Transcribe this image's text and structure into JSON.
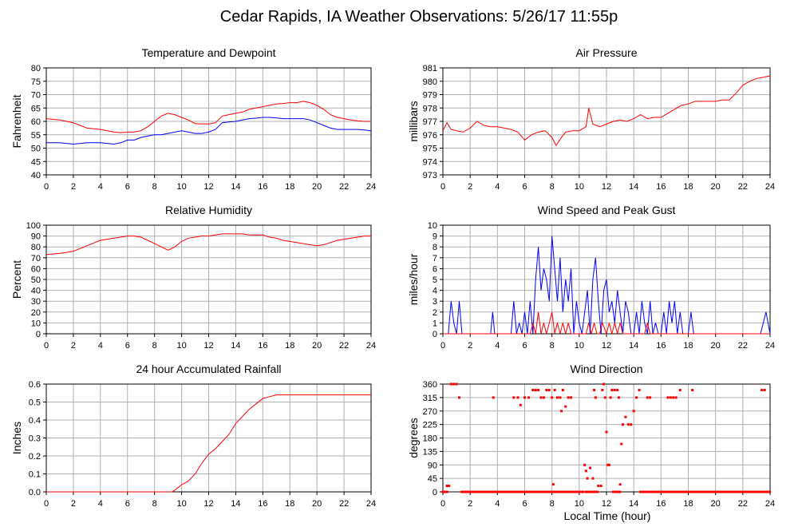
{
  "page": {
    "title": "Cedar Rapids, IA Weather Observations: 5/26/17 11:55p",
    "xlabel": "Local Time (hour)"
  },
  "colors": {
    "red": "#ff0000",
    "blue": "#0000ff",
    "grid": "#b0b0b0"
  },
  "chart_data": [
    {
      "id": "temp",
      "type": "line",
      "title": "Temperature and Dewpoint",
      "ylabel": "Fahrenheit",
      "xlim": [
        0,
        24
      ],
      "ylim": [
        40,
        80
      ],
      "xticks": [
        0,
        2,
        4,
        6,
        8,
        10,
        12,
        14,
        16,
        18,
        20,
        22,
        24
      ],
      "yticks": [
        40,
        45,
        50,
        55,
        60,
        65,
        70,
        75,
        80
      ],
      "series": [
        {
          "color": "#ff0000",
          "x": [
            0,
            1,
            2,
            3,
            4,
            5,
            5.5,
            6,
            6.5,
            7,
            7.5,
            8,
            8.5,
            9,
            9.5,
            10,
            10.5,
            11,
            11.5,
            12,
            12.5,
            13,
            13.5,
            14,
            14.5,
            15,
            15.5,
            16,
            16.5,
            17,
            17.5,
            18,
            18.5,
            19,
            19.5,
            20,
            20.5,
            21,
            21.5,
            22,
            22.5,
            23,
            23.5,
            24
          ],
          "y": [
            61,
            60.5,
            59.5,
            57.5,
            57,
            56,
            55.8,
            56,
            56,
            56.5,
            58,
            60,
            62,
            63,
            62.5,
            61.5,
            60.5,
            59.2,
            59,
            59,
            59.5,
            62,
            62.5,
            63,
            63.5,
            64.5,
            65,
            65.5,
            66,
            66.5,
            66.7,
            67,
            67,
            67.5,
            67,
            66,
            64.5,
            62.5,
            61.5,
            61,
            60.5,
            60.2,
            60,
            60
          ]
        },
        {
          "color": "#0000ff",
          "x": [
            0,
            1,
            2,
            3,
            4,
            5,
            5.5,
            6,
            6.5,
            7,
            7.5,
            8,
            8.5,
            9,
            9.5,
            10,
            10.5,
            11,
            11.5,
            12,
            12.5,
            13,
            13.5,
            14,
            14.5,
            15,
            15.5,
            16,
            16.5,
            17,
            17.5,
            18,
            18.5,
            19,
            19.5,
            20,
            20.5,
            21,
            21.5,
            22,
            22.5,
            23,
            23.5,
            24
          ],
          "y": [
            52,
            52,
            51.5,
            52,
            52,
            51.5,
            52,
            53,
            53,
            54,
            54.5,
            55,
            55,
            55.5,
            56,
            56.5,
            56,
            55.5,
            55.5,
            56,
            57,
            59.5,
            59.8,
            60,
            60.5,
            61,
            61.2,
            61.5,
            61.5,
            61.3,
            61,
            61,
            61,
            61,
            60.5,
            59.5,
            58.5,
            57.5,
            57,
            57,
            57,
            57,
            56.8,
            56.5
          ]
        }
      ]
    },
    {
      "id": "pressure",
      "type": "line",
      "title": "Air Pressure",
      "ylabel": "millibars",
      "xlim": [
        0,
        24
      ],
      "ylim": [
        973,
        981
      ],
      "xticks": [
        0,
        2,
        4,
        6,
        8,
        10,
        12,
        14,
        16,
        18,
        20,
        22,
        24
      ],
      "yticks": [
        973,
        974,
        975,
        976,
        977,
        978,
        979,
        980,
        981
      ],
      "series": [
        {
          "color": "#ff0000",
          "x": [
            0,
            0.3,
            0.6,
            1,
            1.5,
            2,
            2.5,
            3,
            3.5,
            4,
            4.5,
            5,
            5.5,
            6,
            6.5,
            7,
            7.5,
            8,
            8.3,
            8.7,
            9,
            9.5,
            10,
            10.5,
            10.7,
            11,
            11.5,
            12,
            12.5,
            13,
            13.5,
            14,
            14.5,
            15,
            15.5,
            16,
            16.5,
            17,
            17.5,
            18,
            18.5,
            19,
            19.5,
            20,
            20.5,
            21,
            21.5,
            22,
            22.5,
            23,
            23.5,
            24
          ],
          "y": [
            976.3,
            976.9,
            976.4,
            976.3,
            976.2,
            976.5,
            977,
            976.7,
            976.6,
            976.6,
            976.5,
            976.4,
            976.2,
            975.6,
            976,
            976.2,
            976.3,
            975.8,
            975.2,
            975.8,
            976.2,
            976.3,
            976.3,
            976.6,
            978,
            976.8,
            976.6,
            976.8,
            977,
            977.1,
            977,
            977.2,
            977.5,
            977.2,
            977.3,
            977.3,
            977.6,
            977.9,
            978.2,
            978.3,
            978.5,
            978.5,
            978.5,
            978.5,
            978.6,
            978.6,
            979.1,
            979.7,
            980,
            980.2,
            980.3,
            980.4
          ]
        }
      ]
    },
    {
      "id": "humidity",
      "type": "line",
      "title": "Relative Humidity",
      "ylabel": "Percent",
      "xlim": [
        0,
        24
      ],
      "ylim": [
        0,
        100
      ],
      "xticks": [
        0,
        2,
        4,
        6,
        8,
        10,
        12,
        14,
        16,
        18,
        20,
        22,
        24
      ],
      "yticks": [
        0,
        10,
        20,
        30,
        40,
        50,
        60,
        70,
        80,
        90,
        100
      ],
      "series": [
        {
          "color": "#ff0000",
          "x": [
            0,
            1,
            2,
            3,
            4,
            5,
            6,
            6.5,
            7,
            7.5,
            8,
            8.5,
            9,
            9.5,
            10,
            10.5,
            11,
            11.5,
            12,
            12.5,
            13,
            13.5,
            14,
            14.5,
            15,
            15.5,
            16,
            16.5,
            17,
            17.5,
            18,
            18.5,
            19,
            19.5,
            20,
            20.5,
            21,
            21.5,
            22,
            22.5,
            23,
            23.5,
            24
          ],
          "y": [
            73,
            74,
            76,
            81,
            86,
            88,
            90,
            90,
            89,
            86,
            83,
            80,
            77,
            80,
            85,
            88,
            89,
            90,
            90,
            91,
            92,
            92,
            92,
            92,
            91,
            91,
            91,
            89,
            88,
            86,
            85,
            84,
            83,
            82,
            81,
            82,
            84,
            86,
            87,
            88,
            89,
            90,
            90
          ]
        }
      ]
    },
    {
      "id": "wind",
      "type": "line",
      "title": "Wind Speed and Peak Gust",
      "ylabel": "miles/hour",
      "xlim": [
        0,
        24
      ],
      "ylim": [
        0,
        10
      ],
      "xticks": [
        0,
        2,
        4,
        6,
        8,
        10,
        12,
        14,
        16,
        18,
        20,
        22,
        24
      ],
      "yticks": [
        0,
        1,
        2,
        3,
        4,
        5,
        6,
        7,
        8,
        9,
        10
      ],
      "series": [
        {
          "color": "#0000ff",
          "x": [
            0,
            0.4,
            0.6,
            0.8,
            1,
            1.2,
            1.4,
            3.5,
            3.65,
            3.8,
            5,
            5.2,
            5.4,
            5.6,
            5.8,
            6,
            6.2,
            6.4,
            6.6,
            6.8,
            7,
            7.2,
            7.4,
            7.6,
            7.8,
            8,
            8.2,
            8.4,
            8.6,
            8.8,
            9,
            9.2,
            9.4,
            9.6,
            9.8,
            10,
            10.2,
            10.4,
            10.6,
            10.8,
            11,
            11.2,
            11.4,
            11.6,
            11.8,
            12,
            12.2,
            12.4,
            12.6,
            12.8,
            13,
            13.2,
            13.4,
            13.6,
            13.8,
            14,
            14.2,
            14.4,
            14.6,
            14.8,
            15,
            15.2,
            15.4,
            15.6,
            15.8,
            16,
            16.2,
            16.4,
            16.6,
            16.8,
            17,
            17.2,
            17.4,
            17.6,
            18,
            18.2,
            18.4,
            23.3,
            23.5,
            23.7,
            24
          ],
          "y": [
            0,
            0,
            3,
            1,
            0,
            3,
            0,
            0,
            2,
            0,
            0,
            3,
            0,
            1,
            0,
            2,
            0,
            3,
            0,
            5,
            8,
            4,
            6,
            5,
            3,
            9,
            6,
            3,
            7,
            2,
            5,
            3,
            6,
            0,
            3,
            1,
            0,
            2,
            4,
            0,
            5,
            7,
            3,
            0,
            4,
            5,
            2,
            3,
            1,
            4,
            2,
            0,
            3,
            2,
            0,
            0,
            2,
            0,
            3,
            1,
            0,
            3,
            0,
            1,
            0,
            0,
            2,
            0,
            3,
            1,
            3,
            0,
            2,
            0,
            0,
            2,
            0,
            0,
            1,
            2,
            0
          ]
        },
        {
          "color": "#ff0000",
          "x": [
            0,
            6.4,
            6.6,
            6.8,
            7,
            7.2,
            7.4,
            7.6,
            7.8,
            8,
            8.2,
            8.4,
            8.6,
            8.8,
            9,
            9.2,
            9.4,
            10.5,
            10.7,
            10.9,
            11.1,
            11.3,
            11.5,
            11.7,
            12,
            12.2,
            12.4,
            12.6,
            12.8,
            13,
            13.2,
            14.8,
            15,
            15.2,
            24
          ],
          "y": [
            0,
            0,
            1,
            0,
            2,
            0,
            1,
            0,
            1,
            2,
            0,
            1,
            0,
            1,
            0,
            1,
            0,
            0,
            1,
            0,
            1,
            0,
            0,
            1,
            0,
            1,
            0,
            1,
            0,
            1,
            0,
            0,
            1,
            0,
            0
          ]
        }
      ]
    },
    {
      "id": "rain",
      "type": "line",
      "title": "24 hour Accumulated Rainfall",
      "ylabel": "Inches",
      "xlim": [
        0,
        24
      ],
      "ylim": [
        0,
        0.6
      ],
      "xticks": [
        0,
        2,
        4,
        6,
        8,
        10,
        12,
        14,
        16,
        18,
        20,
        22,
        24
      ],
      "yticks": [
        "0.0",
        "0.1",
        "0.2",
        "0.3",
        "0.4",
        "0.5",
        "0.6"
      ],
      "series": [
        {
          "color": "#ff0000",
          "x": [
            0,
            9.3,
            9.5,
            10,
            10.5,
            11,
            11.5,
            12,
            12.5,
            13,
            13.5,
            14,
            14.5,
            15,
            15.5,
            16,
            16.5,
            17,
            24
          ],
          "y": [
            0,
            0,
            0.01,
            0.04,
            0.06,
            0.1,
            0.16,
            0.21,
            0.24,
            0.28,
            0.32,
            0.38,
            0.42,
            0.46,
            0.49,
            0.52,
            0.53,
            0.54,
            0.54
          ]
        }
      ]
    },
    {
      "id": "direction",
      "type": "scatter",
      "title": "Wind Direction",
      "ylabel": "degrees",
      "xlim": [
        0,
        24
      ],
      "ylim": [
        0,
        360
      ],
      "xticks": [
        0,
        2,
        4,
        6,
        8,
        10,
        12,
        14,
        16,
        18,
        20,
        22,
        24
      ],
      "yticks": [
        0,
        45,
        90,
        135,
        180,
        225,
        270,
        315,
        360
      ],
      "series": [
        {
          "color": "#ff0000",
          "points": [
            [
              0.3,
              20
            ],
            [
              0.45,
              20
            ],
            [
              0.6,
              360
            ],
            [
              0.8,
              360
            ],
            [
              1.0,
              360
            ],
            [
              1.2,
              315
            ],
            [
              3.7,
              315
            ],
            [
              5.2,
              315
            ],
            [
              5.5,
              315
            ],
            [
              5.7,
              290
            ],
            [
              6.0,
              315
            ],
            [
              6.3,
              315
            ],
            [
              6.6,
              340
            ],
            [
              6.8,
              340
            ],
            [
              7.0,
              340
            ],
            [
              7.2,
              315
            ],
            [
              7.4,
              315
            ],
            [
              7.6,
              340
            ],
            [
              7.8,
              340
            ],
            [
              8.0,
              315
            ],
            [
              8.1,
              25
            ],
            [
              8.2,
              340
            ],
            [
              8.4,
              315
            ],
            [
              8.6,
              315
            ],
            [
              8.7,
              270
            ],
            [
              8.8,
              340
            ],
            [
              9.0,
              285
            ],
            [
              9.2,
              315
            ],
            [
              9.4,
              315
            ],
            [
              10.4,
              90
            ],
            [
              10.5,
              70
            ],
            [
              10.6,
              45
            ],
            [
              10.8,
              80
            ],
            [
              11.0,
              45
            ],
            [
              11.1,
              340
            ],
            [
              11.2,
              315
            ],
            [
              11.4,
              20
            ],
            [
              11.6,
              20
            ],
            [
              11.7,
              340
            ],
            [
              11.8,
              360
            ],
            [
              11.9,
              315
            ],
            [
              12.0,
              200
            ],
            [
              12.1,
              90
            ],
            [
              12.2,
              90
            ],
            [
              12.3,
              315
            ],
            [
              12.4,
              340
            ],
            [
              12.6,
              340
            ],
            [
              12.8,
              340
            ],
            [
              12.9,
              315
            ],
            [
              13.0,
              25
            ],
            [
              13.1,
              160
            ],
            [
              13.2,
              225
            ],
            [
              13.4,
              250
            ],
            [
              13.6,
              225
            ],
            [
              13.8,
              225
            ],
            [
              14.0,
              270
            ],
            [
              14.2,
              315
            ],
            [
              14.4,
              340
            ],
            [
              15.0,
              315
            ],
            [
              15.2,
              315
            ],
            [
              16.5,
              315
            ],
            [
              16.7,
              315
            ],
            [
              16.9,
              315
            ],
            [
              17.1,
              315
            ],
            [
              17.4,
              340
            ],
            [
              18.3,
              340
            ],
            [
              23.4,
              340
            ],
            [
              23.6,
              340
            ]
          ],
          "baseline_hours": [
            [
              0,
              0.3
            ],
            [
              1.4,
              10.3
            ],
            [
              10.5,
              11.4
            ],
            [
              12.5,
              13
            ],
            [
              14.5,
              24
            ]
          ]
        }
      ]
    }
  ]
}
